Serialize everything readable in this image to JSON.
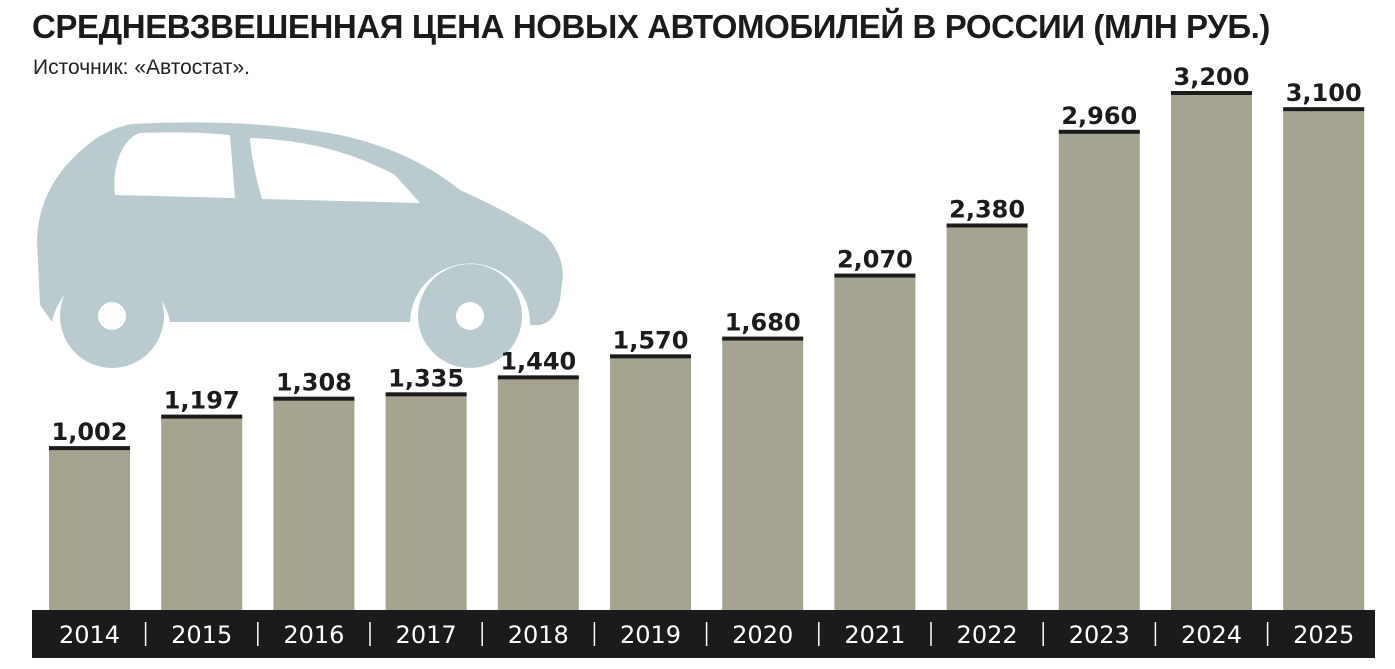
{
  "header": {
    "title": "СРЕДНЕВЗВЕШЕННАЯ ЦЕНА НОВЫХ АВТОМОБИЛЕЙ В РОССИИ (МЛН РУБ.)",
    "source": "Источник: «Автостат»."
  },
  "colors": {
    "bar": "#a6a391",
    "bar_cap": "#1c1c1c",
    "axis_band": "#1b1b1b",
    "axis_text": "#ffffff",
    "car": "#bacbd0"
  },
  "illustration": {
    "icon": "car-icon"
  },
  "chart_data": {
    "type": "bar",
    "title": "СРЕДНЕВЗВЕШЕННАЯ ЦЕНА НОВЫХ АВТОМОБИЛЕЙ В РОССИИ (МЛН РУБ.)",
    "xlabel": "",
    "ylabel": "",
    "categories": [
      "2014",
      "2015",
      "2016",
      "2017",
      "2018",
      "2019",
      "2020",
      "2021",
      "2022",
      "2023",
      "2024",
      "2025"
    ],
    "values": [
      1.002,
      1.197,
      1.308,
      1.335,
      1.44,
      1.57,
      1.68,
      2.07,
      2.38,
      2.96,
      3.2,
      3.1
    ],
    "data_labels": [
      "1,002",
      "1,197",
      "1,308",
      "1,335",
      "1,440",
      "1,570",
      "1,680",
      "2,070",
      "2,380",
      "2,960",
      "3,200",
      "3,100"
    ],
    "ylim": [
      0,
      3.2
    ],
    "grid": false,
    "legend": "none"
  }
}
